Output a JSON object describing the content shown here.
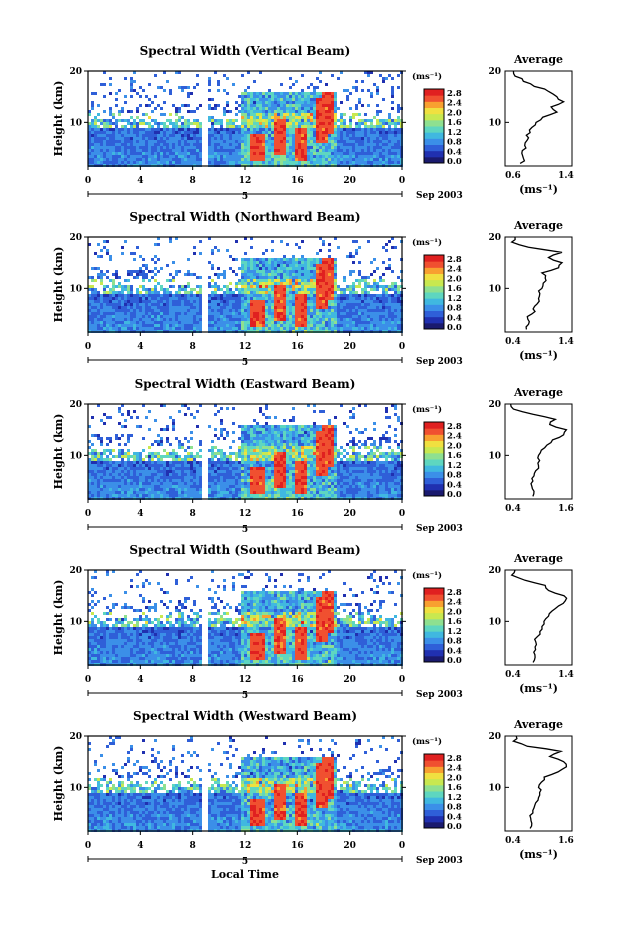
{
  "chart_data": [
    {
      "type": "heatmap",
      "title": "Spectral Width (Vertical Beam)",
      "ylabel": "Height (km)",
      "yticks": [
        "20",
        "10"
      ],
      "xticks": [
        "0",
        "4",
        "8",
        "12",
        "16",
        "20",
        "0"
      ],
      "xlim": [
        0,
        24
      ],
      "ylim": [
        1.5,
        20
      ],
      "date_marker": "5",
      "date_label": "Sep 2003",
      "colorbar_unit": "(ms⁻¹)",
      "colorbar_ticks": [
        "2.8",
        "2.4",
        "2.0",
        "1.6",
        "1.2",
        "0.8",
        "0.4",
        "0.0"
      ],
      "data_gap_local_time": [
        8.7,
        9.1
      ],
      "avg_title": "Average",
      "avg_xlabel": "(ms⁻¹)",
      "avg_xticks": [
        "0.6",
        "1.4"
      ],
      "avg_yticks": [
        "20",
        "10"
      ],
      "avg_xlim": [
        0.6,
        1.4
      ],
      "avg_profile": {
        "height_km": [
          2,
          3,
          4,
          5,
          6,
          7,
          8,
          9,
          10,
          11,
          12,
          13,
          14,
          15,
          16,
          17,
          18,
          19,
          20
        ],
        "width": [
          0.78,
          0.82,
          0.8,
          0.85,
          0.84,
          0.88,
          0.9,
          0.92,
          0.97,
          1.05,
          1.22,
          1.15,
          1.3,
          1.22,
          1.12,
          0.95,
          0.82,
          0.72,
          0.7
        ]
      }
    },
    {
      "type": "heatmap",
      "title": "Spectral Width (Northward Beam)",
      "ylabel": "Height (km)",
      "yticks": [
        "20",
        "10"
      ],
      "xticks": [
        "0",
        "4",
        "8",
        "12",
        "16",
        "20",
        "0"
      ],
      "xlim": [
        0,
        24
      ],
      "ylim": [
        1.5,
        20
      ],
      "date_marker": "5",
      "date_label": "Sep 2003",
      "colorbar_unit": "(ms⁻¹)",
      "colorbar_ticks": [
        "2.8",
        "2.4",
        "2.0",
        "1.6",
        "1.2",
        "0.8",
        "0.4",
        "0.0"
      ],
      "data_gap_local_time": [
        8.7,
        9.1
      ],
      "avg_title": "Average",
      "avg_xlabel": "(ms⁻¹)",
      "avg_xticks": [
        "0.4",
        "1.4"
      ],
      "avg_yticks": [
        "20",
        "10"
      ],
      "avg_xlim": [
        0.4,
        1.4
      ],
      "avg_profile": {
        "height_km": [
          2,
          3,
          4,
          5,
          6,
          7,
          8,
          9,
          10,
          11,
          12,
          13,
          14,
          15,
          16,
          17,
          18,
          19,
          20
        ],
        "width": [
          0.72,
          0.75,
          0.74,
          0.8,
          0.82,
          0.88,
          0.9,
          0.92,
          0.95,
          0.97,
          1.0,
          0.95,
          1.2,
          1.25,
          1.05,
          1.25,
          0.75,
          0.5,
          0.55
        ]
      }
    },
    {
      "type": "heatmap",
      "title": "Spectral Width (Eastward Beam)",
      "ylabel": "Height (km)",
      "yticks": [
        "20",
        "10"
      ],
      "xticks": [
        "0",
        "4",
        "8",
        "12",
        "16",
        "20",
        "0"
      ],
      "xlim": [
        0,
        24
      ],
      "ylim": [
        1.5,
        20
      ],
      "date_marker": "5",
      "date_label": "Sep 2003",
      "colorbar_unit": "(ms⁻¹)",
      "colorbar_ticks": [
        "2.8",
        "2.4",
        "2.0",
        "1.6",
        "1.2",
        "0.8",
        "0.4",
        "0.0"
      ],
      "data_gap_local_time": [
        8.7,
        9.1
      ],
      "avg_title": "Average",
      "avg_xlabel": "",
      "avg_xticks": [
        "0.4",
        "1.6"
      ],
      "avg_yticks": [
        "20",
        "10"
      ],
      "avg_xlim": [
        0.4,
        1.6
      ],
      "avg_profile": {
        "height_km": [
          2,
          3,
          4,
          5,
          6,
          7,
          8,
          9,
          10,
          11,
          12,
          13,
          14,
          15,
          16,
          17,
          18,
          19,
          20
        ],
        "width": [
          0.9,
          0.92,
          0.88,
          0.9,
          0.92,
          0.95,
          1.0,
          1.02,
          1.0,
          1.05,
          1.15,
          1.25,
          1.45,
          1.5,
          1.2,
          1.3,
          0.9,
          0.55,
          0.5
        ]
      }
    },
    {
      "type": "heatmap",
      "title": "Spectral Width (Southward Beam)",
      "ylabel": "Height (km)",
      "yticks": [
        "20",
        "10"
      ],
      "xticks": [
        "0",
        "4",
        "8",
        "12",
        "16",
        "20",
        "0"
      ],
      "xlim": [
        0,
        24
      ],
      "ylim": [
        1.5,
        20
      ],
      "date_marker": "5",
      "date_label": "Sep 2003",
      "colorbar_unit": "(ms⁻¹)",
      "colorbar_ticks": [
        "2.8",
        "2.4",
        "2.0",
        "1.6",
        "1.2",
        "0.8",
        "0.4",
        "0.0"
      ],
      "data_gap_local_time": [
        8.7,
        9.1
      ],
      "avg_title": "Average",
      "avg_xlabel": "(ms⁻¹)",
      "avg_xticks": [
        "0.4",
        "1.4"
      ],
      "avg_yticks": [
        "20",
        "10"
      ],
      "avg_xlim": [
        0.4,
        1.4
      ],
      "avg_profile": {
        "height_km": [
          2,
          3,
          4,
          5,
          6,
          7,
          8,
          9,
          10,
          11,
          12,
          13,
          14,
          15,
          16,
          17,
          18,
          19,
          20
        ],
        "width": [
          0.82,
          0.85,
          0.83,
          0.85,
          0.86,
          0.88,
          0.92,
          0.95,
          0.98,
          1.05,
          1.1,
          1.2,
          1.3,
          1.28,
          1.05,
          1.0,
          0.7,
          0.5,
          0.55
        ]
      }
    },
    {
      "type": "heatmap",
      "title": "Spectral Width (Westward Beam)",
      "ylabel": "Height (km)",
      "yticks": [
        "20",
        "10"
      ],
      "xticks": [
        "0",
        "4",
        "8",
        "12",
        "16",
        "20",
        "0"
      ],
      "xlim": [
        0,
        24
      ],
      "ylim": [
        1.5,
        20
      ],
      "date_marker": "5",
      "date_label": "Sep 2003",
      "colorbar_unit": "(ms⁻¹)",
      "colorbar_ticks": [
        "2.8",
        "2.4",
        "2.0",
        "1.6",
        "1.2",
        "0.8",
        "0.4",
        "0.0"
      ],
      "data_gap_local_time": [
        8.7,
        9.1
      ],
      "avg_title": "Average",
      "avg_xlabel": "(ms⁻¹)",
      "avg_xticks": [
        "0.4",
        "1.6"
      ],
      "avg_yticks": [
        "20",
        "10"
      ],
      "avg_xlim": [
        0.4,
        1.6
      ],
      "avg_profile": {
        "height_km": [
          2,
          3,
          4,
          5,
          6,
          7,
          8,
          9,
          10,
          11,
          12,
          13,
          14,
          15,
          16,
          17,
          18,
          19,
          20
        ],
        "width": [
          0.85,
          0.88,
          0.86,
          0.9,
          0.92,
          0.95,
          1.0,
          1.02,
          1.0,
          1.05,
          1.1,
          1.35,
          1.5,
          1.45,
          1.2,
          1.4,
          0.8,
          0.55,
          0.6
        ]
      }
    }
  ],
  "xlabel_bottom": "Local Time",
  "colorscale": [
    "#1a1a6e",
    "#2030b0",
    "#2f5fd8",
    "#3b8fe8",
    "#40b8e0",
    "#5ed6c0",
    "#8ee090",
    "#c8e850",
    "#f0e040",
    "#f8a030",
    "#f05030",
    "#e02020"
  ]
}
